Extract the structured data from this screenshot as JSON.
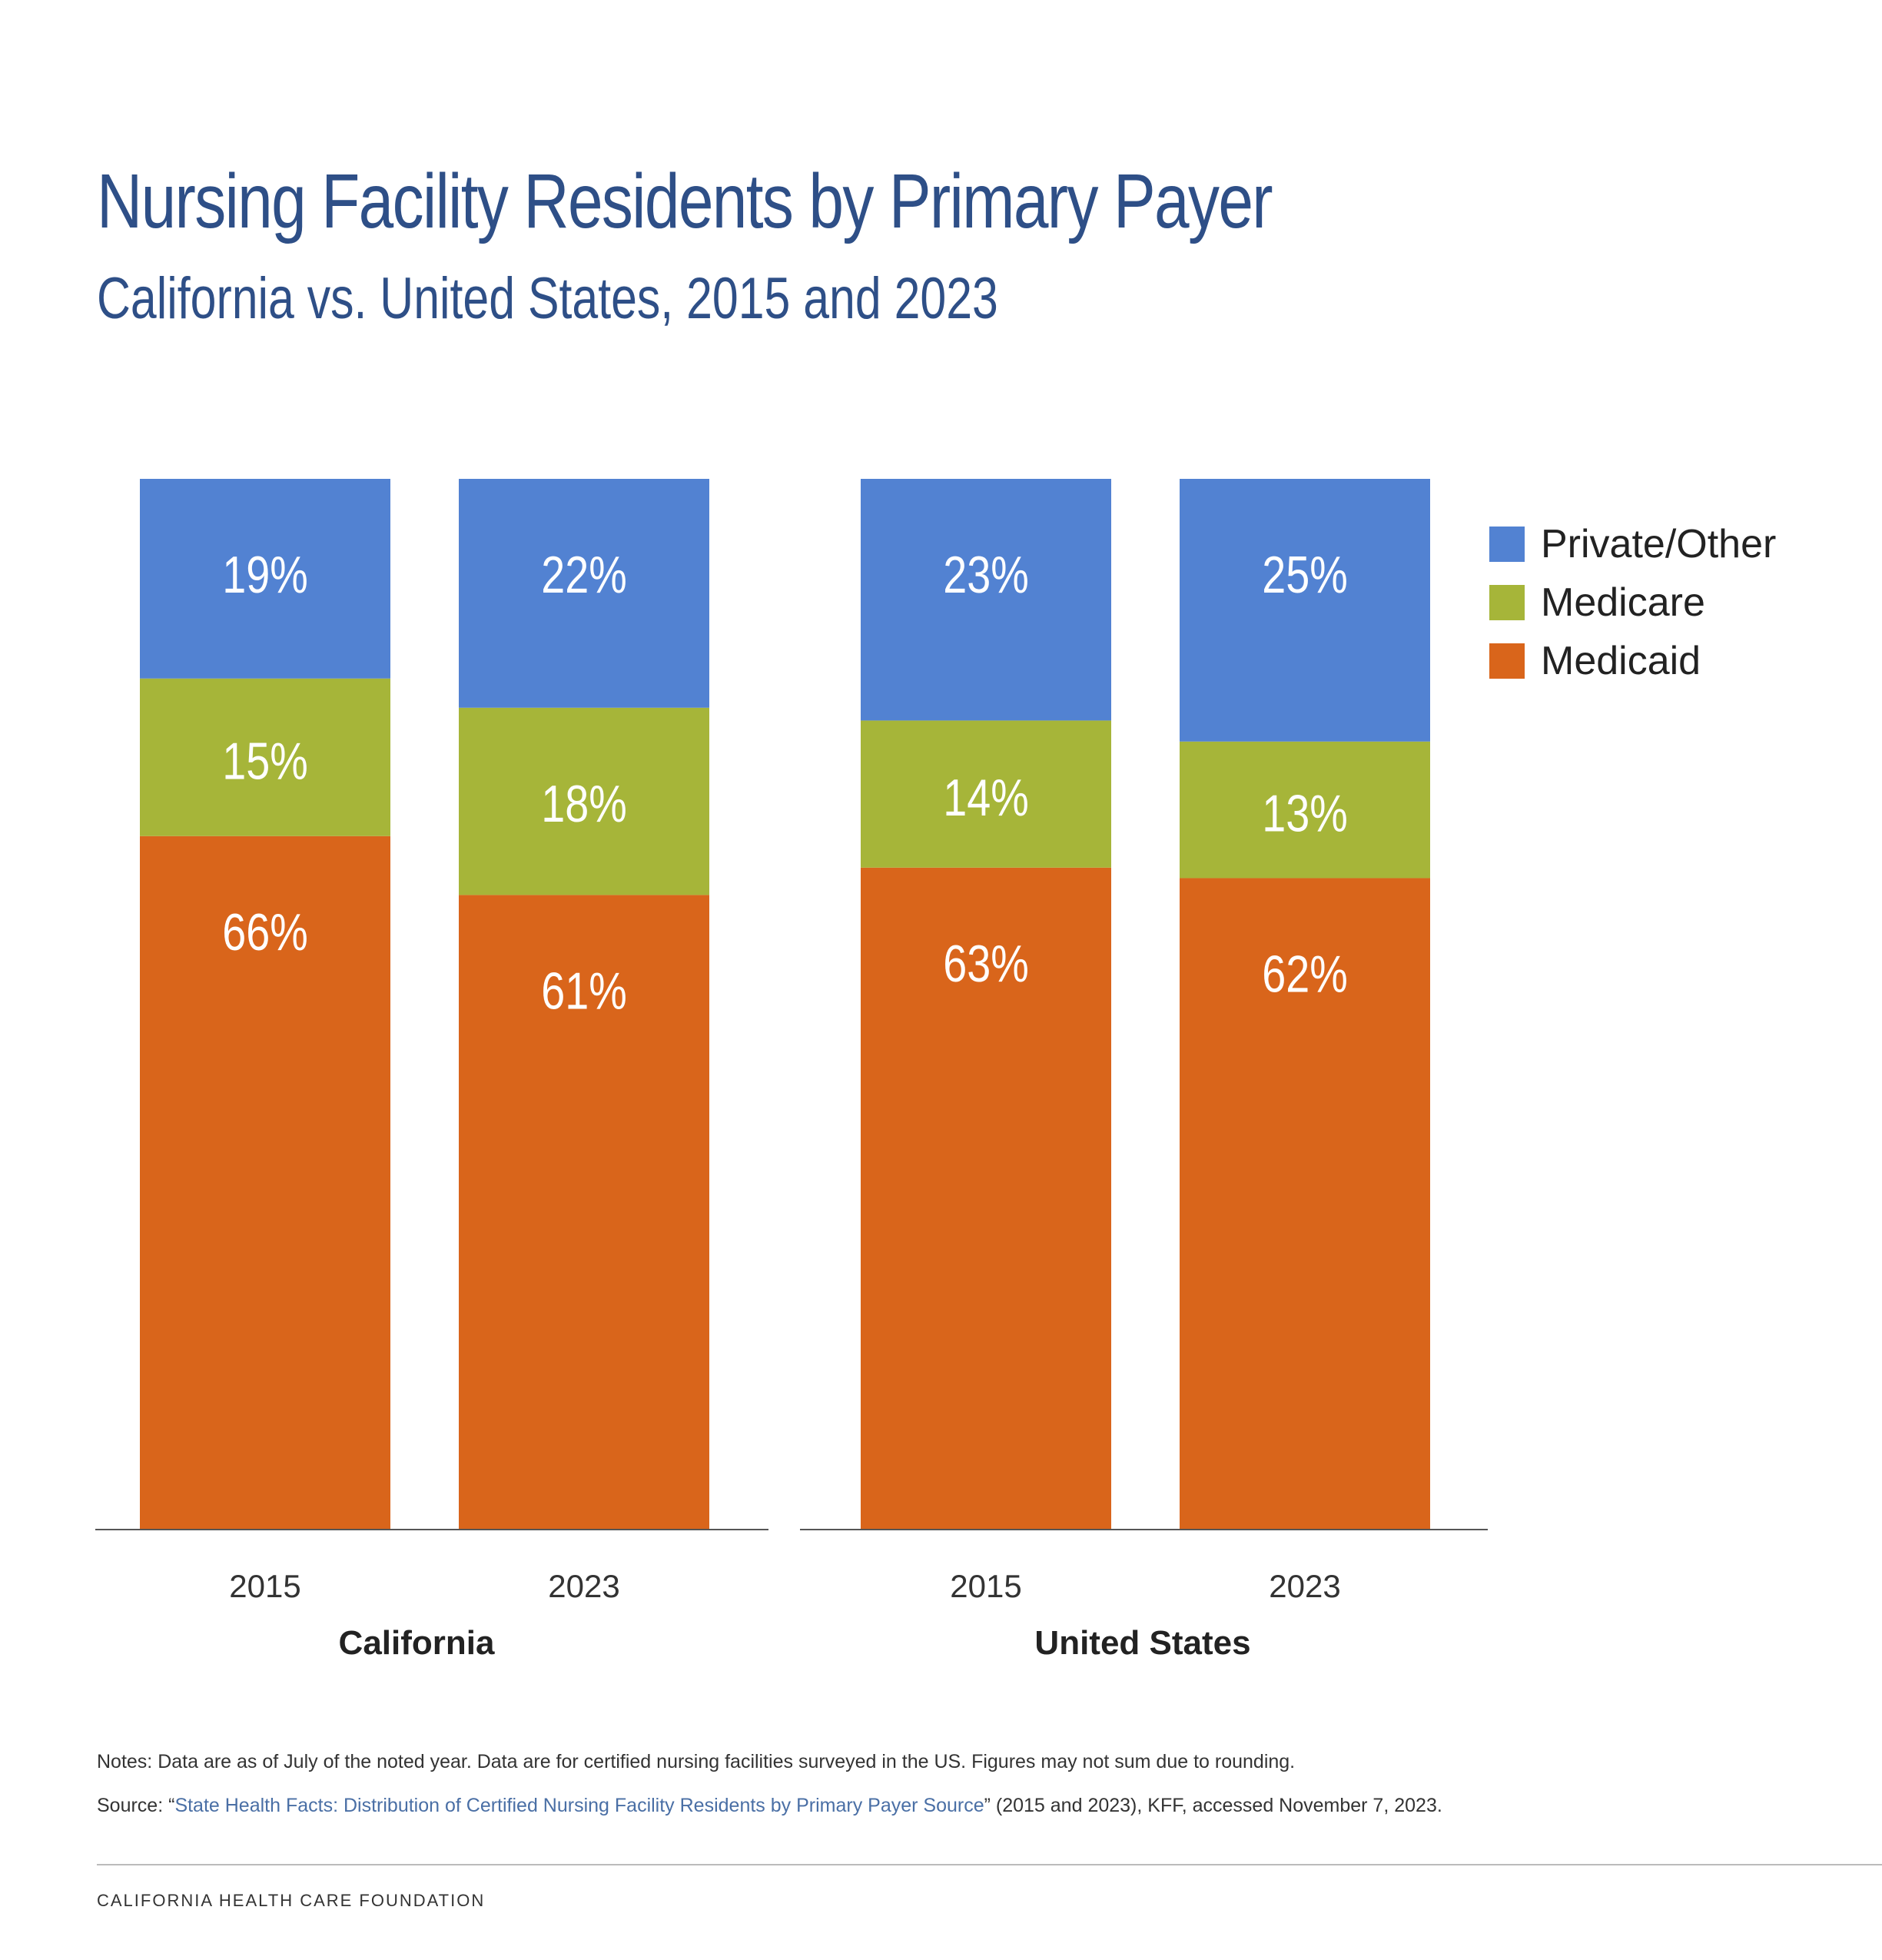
{
  "title": "Nursing Facility Residents by Primary Payer",
  "subtitle": "California vs. United States, 2015 and 2023",
  "notes": "Notes: Data are as of July of the noted year. Data are for certified nursing facilities surveyed in the US. Figures may not sum due to rounding.",
  "source": {
    "prefix": "Source: “",
    "link_text": "State Health Facts: Distribution of Certified Nursing Facility Residents by Primary Payer Source",
    "suffix": "” (2015 and 2023), KFF, accessed November 7, 2023."
  },
  "footer": "CALIFORNIA HEALTH CARE FOUNDATION",
  "chart_data": {
    "type": "bar",
    "stacked": true,
    "ylim": [
      0,
      100
    ],
    "unit": "%",
    "legend_position": "top-right",
    "groups": [
      {
        "label": "California",
        "categories": [
          "2015",
          "2023"
        ]
      },
      {
        "label": "United States",
        "categories": [
          "2015",
          "2023"
        ]
      }
    ],
    "series": [
      {
        "name": "Medicaid",
        "color": "#d9651b",
        "values": [
          66,
          61,
          63,
          62
        ]
      },
      {
        "name": "Medicare",
        "color": "#a6b539",
        "values": [
          15,
          18,
          14,
          13
        ]
      },
      {
        "name": "Private/Other",
        "color": "#5282d2",
        "values": [
          19,
          22,
          23,
          25
        ]
      }
    ],
    "legend_order": [
      "Private/Other",
      "Medicare",
      "Medicaid"
    ]
  }
}
